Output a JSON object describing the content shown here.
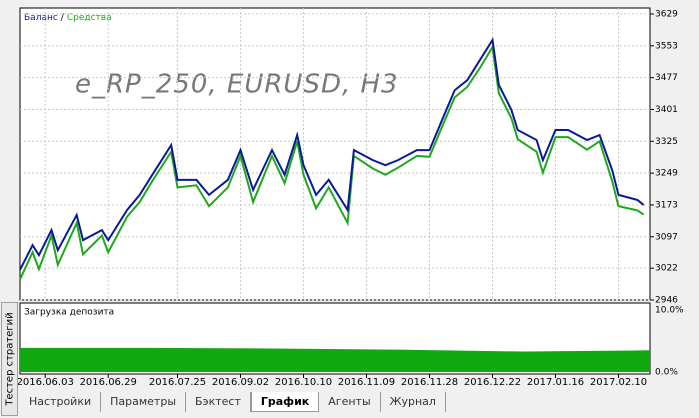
{
  "window": {
    "side_tab": "Тестер стратегий",
    "tabs": [
      "Настройки",
      "Параметры",
      "Бэктест",
      "График",
      "Агенты",
      "Журнал"
    ],
    "active_tab": 3
  },
  "chart_data": [
    {
      "type": "line",
      "title": "e_RP_250, EURUSD, H3",
      "legend_separator": "/",
      "x": [
        0,
        2,
        3,
        5,
        6,
        9,
        10,
        13,
        14,
        17,
        19,
        21,
        24,
        25,
        28,
        30,
        33,
        35,
        37,
        40,
        42,
        44,
        45,
        47,
        49,
        52,
        53,
        56,
        58,
        60,
        63,
        65,
        67,
        69,
        71,
        73,
        75,
        76,
        78,
        79,
        82,
        83,
        85,
        87,
        90,
        92,
        94,
        95,
        98,
        99
      ],
      "series": [
        {
          "name": "Баланс",
          "color": "#0a1a96",
          "values": [
            3018,
            3077,
            3053,
            3113,
            3065,
            3149,
            3089,
            3113,
            3089,
            3161,
            3197,
            3245,
            3316,
            3233,
            3233,
            3197,
            3233,
            3304,
            3209,
            3304,
            3245,
            3340,
            3268,
            3197,
            3233,
            3161,
            3304,
            3280,
            3268,
            3280,
            3304,
            3304,
            3376,
            3447,
            3471,
            3519,
            3567,
            3460,
            3400,
            3352,
            3328,
            3280,
            3352,
            3352,
            3328,
            3340,
            3256,
            3197,
            3185,
            3173
          ]
        },
        {
          "name": "Средства",
          "color": "#1fa81f",
          "values": [
            2995,
            3060,
            3020,
            3100,
            3030,
            3130,
            3055,
            3100,
            3060,
            3145,
            3180,
            3230,
            3300,
            3215,
            3220,
            3170,
            3215,
            3290,
            3180,
            3290,
            3225,
            3325,
            3245,
            3165,
            3215,
            3130,
            3290,
            3260,
            3245,
            3262,
            3290,
            3288,
            3360,
            3430,
            3455,
            3500,
            3550,
            3440,
            3380,
            3330,
            3300,
            3250,
            3335,
            3335,
            3305,
            3325,
            3230,
            3170,
            3160,
            3150
          ]
        }
      ],
      "xlim": [
        0,
        100
      ],
      "xticks": [
        {
          "value": 4,
          "label": "2016.06.03"
        },
        {
          "value": 14,
          "label": "2016.06.29"
        },
        {
          "value": 25,
          "label": "2016.07.25"
        },
        {
          "value": 35,
          "label": "2016.09.02"
        },
        {
          "value": 45,
          "label": "2016.10.10"
        },
        {
          "value": 55,
          "label": "2016.11.09"
        },
        {
          "value": 65,
          "label": "2016.11.28"
        },
        {
          "value": 75,
          "label": "2016.12.22"
        },
        {
          "value": 85,
          "label": "2017.01.16"
        },
        {
          "value": 95,
          "label": "2017.02.10"
        }
      ],
      "ylim": [
        2946,
        3629
      ],
      "yticks": [
        3629,
        3553,
        3477,
        3401,
        3325,
        3249,
        3173,
        3097,
        3022,
        2946
      ],
      "grid": true
    },
    {
      "type": "area",
      "title": "Загрузка депозита",
      "color": "#11a811",
      "x": [
        0,
        20,
        40,
        60,
        80,
        100
      ],
      "values": [
        3.9,
        3.9,
        3.8,
        3.6,
        3.3,
        3.5
      ],
      "xlim": [
        0,
        100
      ],
      "ylim": [
        0,
        10
      ],
      "yticks": [
        {
          "value": 10,
          "label": "10.0%"
        },
        {
          "value": 0,
          "label": "0.0%"
        }
      ]
    }
  ]
}
